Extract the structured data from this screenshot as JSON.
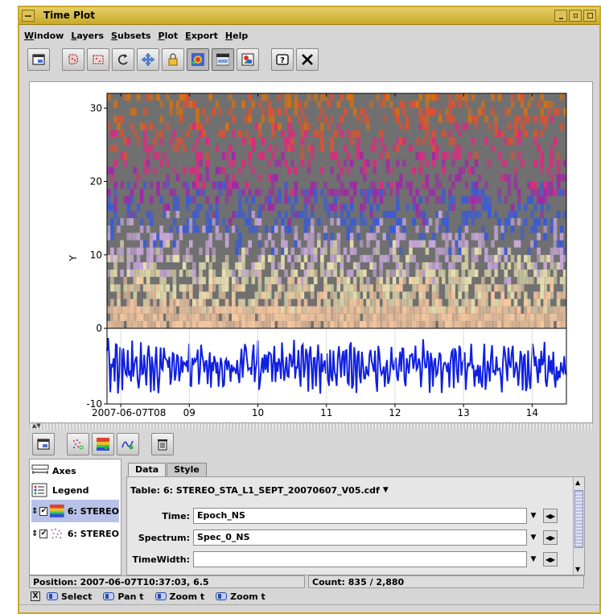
{
  "window": {
    "title": "Time Plot"
  },
  "menubar": {
    "items": [
      {
        "label": "Window",
        "mnemonic": "W",
        "rest": "indow"
      },
      {
        "label": "Layers",
        "mnemonic": "L",
        "rest": "ayers"
      },
      {
        "label": "Subsets",
        "mnemonic": "S",
        "rest": "ubsets"
      },
      {
        "label": "Plot",
        "mnemonic": "P",
        "rest": "lot"
      },
      {
        "label": "Export",
        "mnemonic": "E",
        "rest": "xport"
      },
      {
        "label": "Help",
        "mnemonic": "H",
        "rest": "elp"
      }
    ]
  },
  "toolbar": {
    "icons": [
      "window-icon",
      "blob-subset-icon",
      "box-subset-icon",
      "replot-icon",
      "navigate-icon",
      "axis-lock-icon",
      "sketch-density-icon",
      "axis-zoom-icon",
      "export-image-icon",
      "help-icon",
      "close-icon"
    ]
  },
  "layer_toolbar": {
    "icons": [
      "window-icon",
      "add-marks-layer-icon",
      "add-spectrogram-layer-icon",
      "add-line-layer-icon",
      "delete-layer-icon"
    ]
  },
  "chart_data": {
    "type": "heatmap",
    "top_panel": {
      "ylabel": "Y",
      "ylim": [
        0,
        32
      ],
      "yticks": [
        "0",
        "10",
        "20",
        "30"
      ]
    },
    "bottom_panel": {
      "type": "line",
      "ylim": [
        -10,
        0
      ],
      "yticks": [
        "-10",
        "0"
      ],
      "line_color": "#1020e0"
    },
    "xticks": [
      "2007-06-07T08",
      "09",
      "10",
      "11",
      "12",
      "13",
      "14"
    ],
    "xlim_hours": [
      7.8,
      14.5
    ],
    "heatmap_colors": [
      "#f7c8a0",
      "#e8e0b0",
      "#c8a8d8",
      "#3a5ad8",
      "#a028a8",
      "#e02880",
      "#e05030",
      "#d87010"
    ],
    "background_color": "#707070"
  },
  "layers_list": {
    "items": [
      {
        "label": "Axes",
        "icon": "axes-icon"
      },
      {
        "label": "Legend",
        "icon": "legend-icon"
      },
      {
        "label": "6: STEREO",
        "icon": "spectrogram-icon",
        "checked": true
      },
      {
        "label": "6: STEREO",
        "icon": "marks-icon",
        "checked": true
      }
    ]
  },
  "tabs": {
    "data": "Data",
    "style": "Style"
  },
  "form": {
    "table_label": "Table:",
    "table_value": "6: STEREO_STA_L1_SEPT_20070607_V05.cdf",
    "time_label": "Time:",
    "time_value": "Epoch_NS",
    "spectrum_label": "Spectrum:",
    "spectrum_value": "Spec_0_NS",
    "timewidth_label": "TimeWidth:",
    "timewidth_value": ""
  },
  "status": {
    "position": "Position: 2007-06-07T10:37:03, 6.5",
    "count": "Count: 835 / 2,880"
  },
  "hints": {
    "close_glyph": "X",
    "items": [
      "Select",
      "Pan t",
      "Zoom t",
      "Zoom t"
    ]
  }
}
